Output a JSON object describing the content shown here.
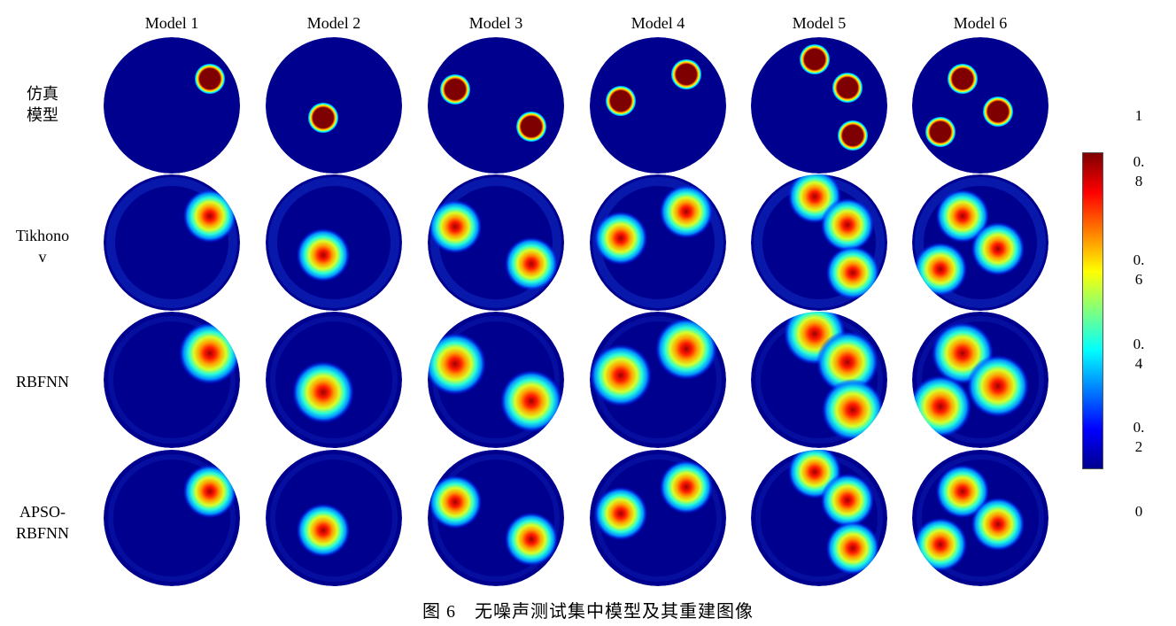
{
  "columns": [
    "Model 1",
    "Model 2",
    "Model 3",
    "Model 4",
    "Model 5",
    "Model 6"
  ],
  "rows": [
    {
      "label_lines": [
        "仿真",
        "模型"
      ]
    },
    {
      "label_lines": [
        "Tikhono",
        "v"
      ]
    },
    {
      "label_lines": [
        "RBFNN"
      ]
    },
    {
      "label_lines": [
        "APSO-",
        "RBFNN"
      ]
    }
  ],
  "colorbar": {
    "ticks": [
      {
        "lines": [
          "1"
        ]
      },
      {
        "lines": [
          "0.",
          "8"
        ]
      },
      {
        "lines": [
          "0.",
          "6"
        ]
      },
      {
        "lines": [
          "0.",
          "4"
        ]
      },
      {
        "lines": [
          "0.",
          "2"
        ]
      },
      {
        "lines": [
          "0"
        ]
      }
    ],
    "colormap": "jet",
    "gradient_colors": [
      "#7f0000",
      "#ff0000",
      "#ff7f00",
      "#ffff00",
      "#7fff7f",
      "#00ffff",
      "#007fff",
      "#0000ff",
      "#00008f"
    ]
  },
  "colors": {
    "background_field": "#00008f"
  },
  "caption": "图 6　无噪声测试集中模型及其重建图像"
}
